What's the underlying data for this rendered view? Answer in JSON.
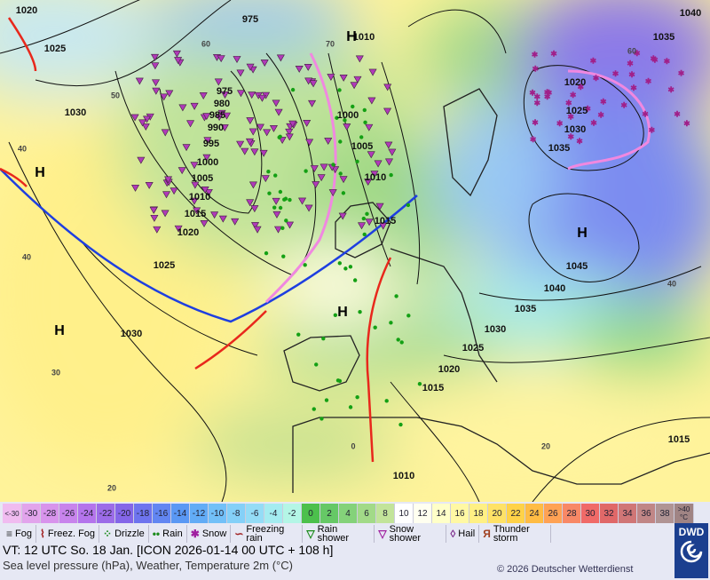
{
  "map": {
    "pressure_labels": [
      "1020",
      "1025",
      "1030",
      "975",
      "1010",
      "1040",
      "1035",
      "975",
      "980",
      "985",
      "990",
      "995",
      "1000",
      "1005",
      "1010",
      "1015",
      "1020",
      "1025",
      "1030",
      "1000",
      "1005",
      "1010",
      "1015",
      "1020",
      "1025",
      "1030",
      "1035",
      "1045",
      "1040",
      "1035",
      "1030",
      "1025",
      "1020",
      "1015",
      "1010",
      "1015"
    ],
    "pressure_centers": [
      "H",
      "H",
      "H",
      "H",
      "H"
    ],
    "temperature_labels": [
      "50",
      "40",
      "40",
      "30",
      "20",
      "60",
      "70",
      "60",
      "40",
      "20",
      "0"
    ]
  },
  "temperature_scale": {
    "low": "<-30",
    "cells": [
      {
        "label": "-30",
        "color": "#e2a4ec"
      },
      {
        "label": "-28",
        "color": "#d894ec"
      },
      {
        "label": "-26",
        "color": "#c884ec"
      },
      {
        "label": "-24",
        "color": "#b474ec"
      },
      {
        "label": "-22",
        "color": "#9c6ce8"
      },
      {
        "label": "-20",
        "color": "#8466e8"
      },
      {
        "label": "-18",
        "color": "#6e74ee"
      },
      {
        "label": "-16",
        "color": "#6286f2"
      },
      {
        "label": "-14",
        "color": "#5a98f4"
      },
      {
        "label": "-12",
        "color": "#62acf6"
      },
      {
        "label": "-10",
        "color": "#72c0f8"
      },
      {
        "label": "-8",
        "color": "#84d0f8"
      },
      {
        "label": "-6",
        "color": "#94dcf6"
      },
      {
        "label": "-4",
        "color": "#a4ecf0"
      },
      {
        "label": "-2",
        "color": "#b4f6e6"
      },
      {
        "label": "0",
        "color": "#4cc04c"
      },
      {
        "label": "2",
        "color": "#66c866"
      },
      {
        "label": "4",
        "color": "#84d27a"
      },
      {
        "label": "6",
        "color": "#a2da88"
      },
      {
        "label": "8",
        "color": "#c2e49a"
      },
      {
        "label": "10",
        "color": "#ffffff"
      },
      {
        "label": "12",
        "color": "#fffff0"
      },
      {
        "label": "14",
        "color": "#ffffc8"
      },
      {
        "label": "16",
        "color": "#fff8a4"
      },
      {
        "label": "18",
        "color": "#fff084"
      },
      {
        "label": "20",
        "color": "#ffe266"
      },
      {
        "label": "22",
        "color": "#ffd248"
      },
      {
        "label": "24",
        "color": "#ffbc44"
      },
      {
        "label": "26",
        "color": "#ffa254"
      },
      {
        "label": "28",
        "color": "#f88866"
      },
      {
        "label": "30",
        "color": "#f06a68"
      },
      {
        "label": "32",
        "color": "#e06868"
      },
      {
        "label": "34",
        "color": "#d07676"
      },
      {
        "label": "36",
        "color": "#c08686"
      },
      {
        "label": "38",
        "color": "#b09494"
      }
    ],
    "high": ">40",
    "unit": "°C"
  },
  "weather_legend": [
    "Fog",
    "Freez. Fog",
    "Drizzle",
    "Rain",
    "Snow",
    "Freezing rain",
    "Rain shower",
    "Snow shower",
    "Hail",
    "Thunder storm"
  ],
  "footer": {
    "valid_time": "VT: 12 UTC So.  18 Jan. [ICON 2026-01-14  00 UTC + 108 h]",
    "description": "Sea level pressure (hPa), Weather, Temperature 2m (°C)",
    "copyright": "© 2026 Deutscher Wetterdienst",
    "logo": "DWD"
  }
}
